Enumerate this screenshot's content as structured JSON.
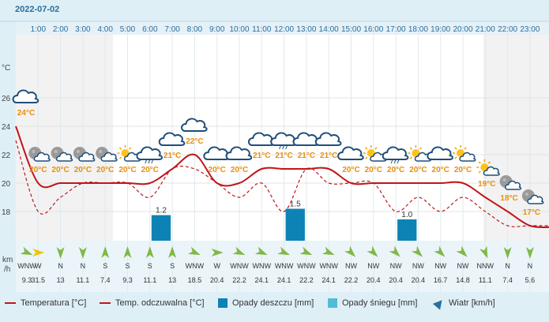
{
  "date": "2022-07-02",
  "hours": [
    "1:00",
    "2:00",
    "3:00",
    "4:00",
    "5:00",
    "6:00",
    "7:00",
    "8:00",
    "9:00",
    "10:00",
    "11:00",
    "12:00",
    "13:00",
    "14:00",
    "15:00",
    "16:00",
    "17:00",
    "18:00",
    "19:00",
    "20:00",
    "21:00",
    "22:00",
    "23:00"
  ],
  "temp_unit_label": "°C",
  "wind_unit_label": [
    "km",
    "/h"
  ],
  "colors": {
    "temp": "#c0151a",
    "feels": "#c0151a",
    "rain": "#0c83b4",
    "snow": "#50bcd6",
    "wind": "#80b845",
    "axis": "#2b6f9c",
    "label": "#e8900a"
  },
  "chart_data": {
    "type": "line",
    "title": "",
    "ylabel": "°C",
    "ylim": [
      16,
      28
    ],
    "yticks": [
      18,
      20,
      22,
      24,
      26
    ],
    "x": [
      "0:00",
      "1:00",
      "2:00",
      "3:00",
      "4:00",
      "5:00",
      "6:00",
      "7:00",
      "8:00",
      "9:00",
      "10:00",
      "11:00",
      "12:00",
      "13:00",
      "14:00",
      "15:00",
      "16:00",
      "17:00",
      "18:00",
      "19:00",
      "20:00",
      "21:00",
      "22:00",
      "23:00",
      "24:00"
    ],
    "series": [
      {
        "name": "Temperatura [°C]",
        "values": [
          24,
          20,
          20,
          20,
          20,
          20,
          20,
          21,
          22,
          20,
          20,
          21,
          21,
          21,
          21,
          20,
          20,
          20,
          20,
          20,
          20,
          19,
          18,
          17,
          16.9
        ]
      },
      {
        "name": "Temp. odczuwalna [°C]",
        "values": [
          23,
          18,
          19,
          20,
          20,
          20,
          19,
          21,
          21,
          20,
          19,
          20,
          18,
          21,
          20,
          20,
          20,
          18,
          19,
          18,
          19,
          18,
          17,
          17,
          17
        ]
      }
    ],
    "temp_labels": [
      {
        "hour": "0:00",
        "label": "24°C"
      },
      {
        "hour": "1:00",
        "label": "20°C"
      },
      {
        "hour": "2:00",
        "label": "20°C"
      },
      {
        "hour": "3:00",
        "label": "20°C"
      },
      {
        "hour": "4:00",
        "label": "20°C"
      },
      {
        "hour": "5:00",
        "label": "20°C"
      },
      {
        "hour": "6:00",
        "label": "20°C"
      },
      {
        "hour": "7:00",
        "label": "21°C"
      },
      {
        "hour": "8:00",
        "label": "22°C"
      },
      {
        "hour": "9:00",
        "label": "20°C"
      },
      {
        "hour": "10:00",
        "label": "20°C"
      },
      {
        "hour": "11:00",
        "label": "21°C"
      },
      {
        "hour": "12:00",
        "label": "21°C"
      },
      {
        "hour": "13:00",
        "label": "21°C"
      },
      {
        "hour": "14:00",
        "label": "21°C"
      },
      {
        "hour": "15:00",
        "label": "20°C"
      },
      {
        "hour": "16:00",
        "label": "20°C"
      },
      {
        "hour": "17:00",
        "label": "20°C"
      },
      {
        "hour": "18:00",
        "label": "20°C"
      },
      {
        "hour": "19:00",
        "label": "20°C"
      },
      {
        "hour": "20:00",
        "label": "20°C"
      },
      {
        "hour": "21:00",
        "label": "19°C"
      },
      {
        "hour": "22:00",
        "label": "18°C"
      },
      {
        "hour": "23:00",
        "label": "17°C"
      }
    ],
    "weather_icons": [
      "cloud",
      "partly-cloudy-night",
      "partly-cloudy-night",
      "partly-cloudy-night",
      "partly-cloudy-night",
      "partly-cloudy-sun",
      "cloud-rain",
      "cloud",
      "cloud",
      "cloud",
      "cloud",
      "cloud",
      "cloud-rain",
      "cloud",
      "cloud",
      "cloud",
      "partly-cloudy-sun",
      "cloud-rain",
      "partly-cloudy-sun",
      "cloud",
      "partly-cloudy-sun",
      "partly-cloudy-sun",
      "partly-cloudy-night",
      "partly-cloudy-night"
    ],
    "rain_bars": [
      {
        "hour": "6:00",
        "value": 1.2,
        "label": "1.2"
      },
      {
        "hour": "12:00",
        "value": 1.5,
        "label": "1.5"
      },
      {
        "hour": "17:00",
        "value": 1.0,
        "label": "1.0"
      }
    ],
    "wind": [
      {
        "dir": "WNW",
        "speed": "9.3"
      },
      {
        "dir": "W",
        "speed": "31.5"
      },
      {
        "dir": "N",
        "speed": "13"
      },
      {
        "dir": "N",
        "speed": "11.1"
      },
      {
        "dir": "S",
        "speed": "7.4"
      },
      {
        "dir": "S",
        "speed": "9.3"
      },
      {
        "dir": "S",
        "speed": "11.1"
      },
      {
        "dir": "S",
        "speed": "13"
      },
      {
        "dir": "WNW",
        "speed": "18.5"
      },
      {
        "dir": "W",
        "speed": "20.4"
      },
      {
        "dir": "WNW",
        "speed": "22.2"
      },
      {
        "dir": "WNW",
        "speed": "24.1"
      },
      {
        "dir": "WNW",
        "speed": "24.1"
      },
      {
        "dir": "WNW",
        "speed": "22.2"
      },
      {
        "dir": "WNW",
        "speed": "24.1"
      },
      {
        "dir": "NW",
        "speed": "22.2"
      },
      {
        "dir": "NW",
        "speed": "20.4"
      },
      {
        "dir": "NW",
        "speed": "20.4"
      },
      {
        "dir": "NW",
        "speed": "20.4"
      },
      {
        "dir": "NW",
        "speed": "16.7"
      },
      {
        "dir": "NW",
        "speed": "14.8"
      },
      {
        "dir": "NNW",
        "speed": "11.1"
      },
      {
        "dir": "N",
        "speed": "7.4"
      },
      {
        "dir": "N",
        "speed": "5.6"
      }
    ]
  },
  "legend": [
    {
      "label": "Temperatura [°C]",
      "kind": "line"
    },
    {
      "label": "Temp. odczuwalna [°C]",
      "kind": "line"
    },
    {
      "label": "Opady deszczu [mm]",
      "kind": "rain"
    },
    {
      "label": "Opady śniegu [mm]",
      "kind": "snow"
    },
    {
      "label": "Wiatr [km/h]",
      "kind": "wind"
    }
  ]
}
